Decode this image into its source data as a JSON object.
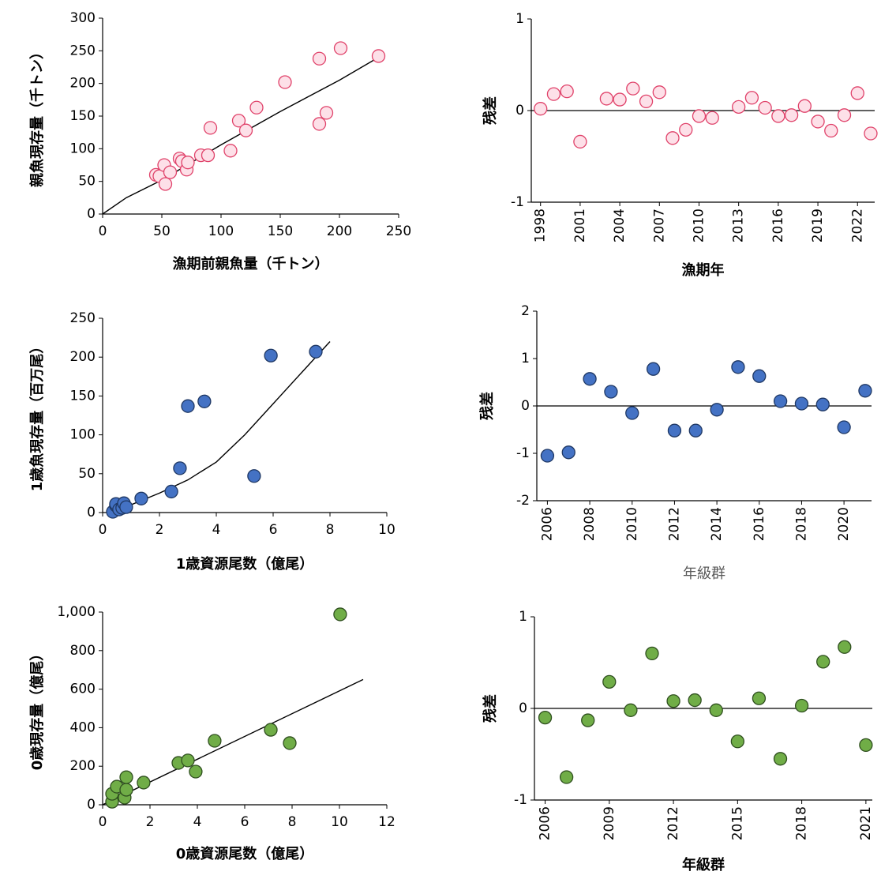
{
  "chart_data": [
    {
      "type": "scatter",
      "xlabel": "漁期前親魚量（千トン）",
      "ylabel": "親魚現存量（千トン）",
      "x": [
        45,
        48,
        52,
        53,
        57,
        65,
        67,
        71,
        72,
        83,
        89,
        91,
        108,
        115,
        121,
        130,
        154,
        183,
        183,
        189,
        201,
        233
      ],
      "values": [
        60,
        58,
        75,
        46,
        64,
        85,
        81,
        68,
        79,
        90,
        90,
        132,
        97,
        143,
        128,
        163,
        202,
        238,
        138,
        155,
        254,
        242
      ],
      "fit": {
        "x": [
          0,
          20,
          50,
          100,
          150,
          200,
          233
        ],
        "values": [
          0,
          25,
          52,
          106,
          157,
          205,
          240
        ]
      },
      "color": "#fde0e8",
      "edge_color": "#e0426a",
      "xlim": [
        0,
        250
      ],
      "xticks": [
        0,
        50,
        100,
        150,
        200,
        250
      ],
      "ylim": [
        0,
        300
      ],
      "yticks": [
        0,
        50,
        100,
        150,
        200,
        250,
        300
      ]
    },
    {
      "type": "scatter",
      "xlabel": "漁期年",
      "ylabel": "残差",
      "x": [
        1998,
        1999,
        2000,
        2001,
        2002,
        2003,
        2004,
        2005,
        2006,
        2007,
        2008,
        2009,
        2010,
        2011,
        2012,
        2013,
        2014,
        2015,
        2016,
        2017,
        2018,
        2019,
        2020,
        2021,
        2022,
        2023
      ],
      "values": [
        0.02,
        0.18,
        0.21,
        -0.34,
        null,
        0.13,
        0.12,
        0.24,
        0.1,
        0.2,
        -0.3,
        -0.21,
        -0.06,
        -0.08,
        null,
        0.04,
        0.14,
        0.03,
        -0.06,
        -0.05,
        0.05,
        -0.12,
        -0.22,
        -0.05,
        0.19,
        -0.25
      ],
      "hline": 0,
      "color": "#fde0e8",
      "edge_color": "#e0426a",
      "xtick_rotate": true,
      "xlim": [
        1997.3,
        2023.3
      ],
      "xticks": [
        1998,
        2001,
        2004,
        2007,
        2010,
        2013,
        2016,
        2019,
        2022
      ],
      "ylim": [
        -1,
        1
      ],
      "yticks": [
        -1,
        0,
        1
      ]
    },
    {
      "type": "scatter",
      "xlabel": "1歳資源尾数（億尾）",
      "ylabel": "1歳魚現存量（百万尾）",
      "x": [
        0.36,
        0.47,
        0.47,
        0.58,
        0.69,
        0.75,
        0.83,
        1.36,
        2.42,
        2.72,
        3.0,
        3.58,
        5.33,
        5.92,
        7.5
      ],
      "values": [
        1,
        9,
        11,
        4,
        6,
        12,
        7,
        18,
        27,
        57,
        137,
        143,
        47,
        202,
        207
      ],
      "fit": {
        "x": [
          0.3,
          1,
          2,
          3,
          4,
          5,
          6,
          7,
          8
        ],
        "values": [
          3,
          10,
          25,
          42,
          65,
          100,
          140,
          180,
          220
        ]
      },
      "color": "#4472c4",
      "edge_color": "#1f3864",
      "xlim": [
        0,
        10
      ],
      "xticks": [
        0,
        2,
        4,
        6,
        8,
        10
      ],
      "ylim": [
        0,
        250
      ],
      "yticks": [
        0,
        50,
        100,
        150,
        200,
        250
      ]
    },
    {
      "type": "scatter",
      "xlabel": "年級群",
      "ylabel": "残差",
      "xlabel_color": "#595959",
      "x": [
        2006,
        2007,
        2008,
        2009,
        2010,
        2011,
        2012,
        2013,
        2014,
        2015,
        2016,
        2017,
        2018,
        2019,
        2020,
        2021
      ],
      "values": [
        -1.05,
        -0.98,
        0.57,
        0.3,
        -0.15,
        0.78,
        -0.52,
        -0.52,
        -0.08,
        0.82,
        0.63,
        0.1,
        0.05,
        0.03,
        -0.45,
        0.32
      ],
      "hline": 0,
      "color": "#4472c4",
      "edge_color": "#1f3864",
      "xtick_rotate": true,
      "xlim": [
        2005.5,
        2021.3
      ],
      "xticks": [
        2006,
        2008,
        2010,
        2012,
        2014,
        2016,
        2018,
        2020
      ],
      "ylim": [
        -2,
        2
      ],
      "yticks": [
        -2,
        -1,
        0,
        1,
        2
      ]
    },
    {
      "type": "scatter",
      "xlabel": "0歳資源尾数（億尾）",
      "ylabel": "0歳現存量（億尾）",
      "x": [
        0.4,
        0.4,
        0.6,
        0.93,
        1.0,
        1.0,
        1.73,
        3.2,
        3.6,
        3.93,
        4.73,
        7.1,
        7.9,
        10.03
      ],
      "values": [
        16,
        57,
        94,
        37,
        78,
        143,
        115,
        217,
        230,
        172,
        332,
        389,
        320,
        988
      ],
      "fit": {
        "x": [
          0,
          11
        ],
        "values": [
          0,
          650
        ]
      },
      "color": "#70ad47",
      "edge_color": "#2f4f1f",
      "xlim": [
        0,
        12
      ],
      "xticks": [
        0,
        2,
        4,
        6,
        8,
        10,
        12
      ],
      "ylim": [
        0,
        1000
      ],
      "yticks": [
        0,
        200,
        400,
        600,
        800,
        {
          "value": 1000,
          "label": "1,000"
        }
      ]
    },
    {
      "type": "scatter",
      "xlabel": "年級群",
      "ylabel": "残差",
      "x": [
        2006,
        2007,
        2008,
        2009,
        2010,
        2011,
        2012,
        2013,
        2014,
        2015,
        2016,
        2017,
        2018,
        2019,
        2020,
        2021
      ],
      "values": [
        -0.1,
        -0.75,
        -0.13,
        0.29,
        -0.02,
        0.6,
        0.08,
        0.09,
        -0.02,
        -0.36,
        0.11,
        -0.55,
        0.03,
        0.51,
        0.67,
        -0.4
      ],
      "hline": 0,
      "color": "#70ad47",
      "edge_color": "#2f4f1f",
      "xtick_rotate": true,
      "xlim": [
        2005.5,
        2021.3
      ],
      "xticks": [
        2006,
        2009,
        2012,
        2015,
        2018,
        2021
      ],
      "ylim": [
        -1,
        1
      ],
      "yticks": [
        -1,
        0,
        1
      ]
    }
  ]
}
